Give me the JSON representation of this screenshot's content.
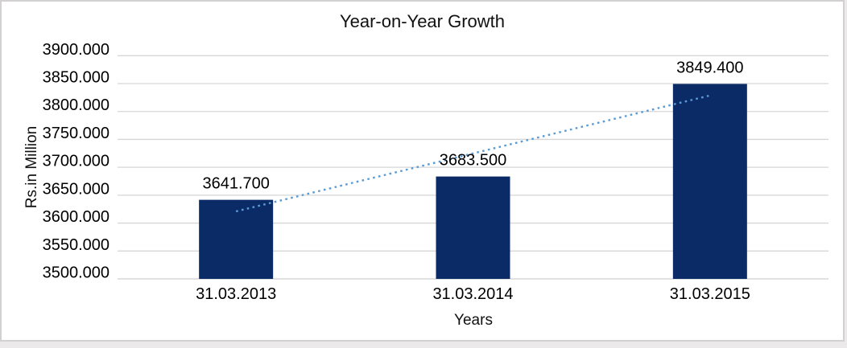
{
  "chart_data": {
    "type": "bar",
    "title": "Year-on-Year Growth",
    "xlabel": "Years",
    "ylabel": "Rs.in Million",
    "categories": [
      "31.03.2013",
      "31.03.2014",
      "31.03.2015"
    ],
    "values": [
      3641.7,
      3683.5,
      3849.4
    ],
    "data_labels": [
      "3641.700",
      "3683.500",
      "3849.400"
    ],
    "ylim": [
      3500,
      3900
    ],
    "ytick_interval": 50,
    "ytick_labels": [
      "3500.000",
      "3550.000",
      "3600.000",
      "3650.000",
      "3700.000",
      "3750.000",
      "3800.000",
      "3850.000",
      "3900.000"
    ],
    "grid": true,
    "legend_position": "none",
    "trendline": {
      "type": "linear",
      "style": "dotted",
      "endpoint_values": [
        3621.017,
        3828.717
      ],
      "color": "#5b9bd5"
    },
    "colors": {
      "bar": "#0b2b67",
      "gridline": "#d6d6d6",
      "axis_line": "#cfcfcf",
      "text": "#000000",
      "background": "#ffffff",
      "frame_border": "#d2d0d0"
    }
  }
}
